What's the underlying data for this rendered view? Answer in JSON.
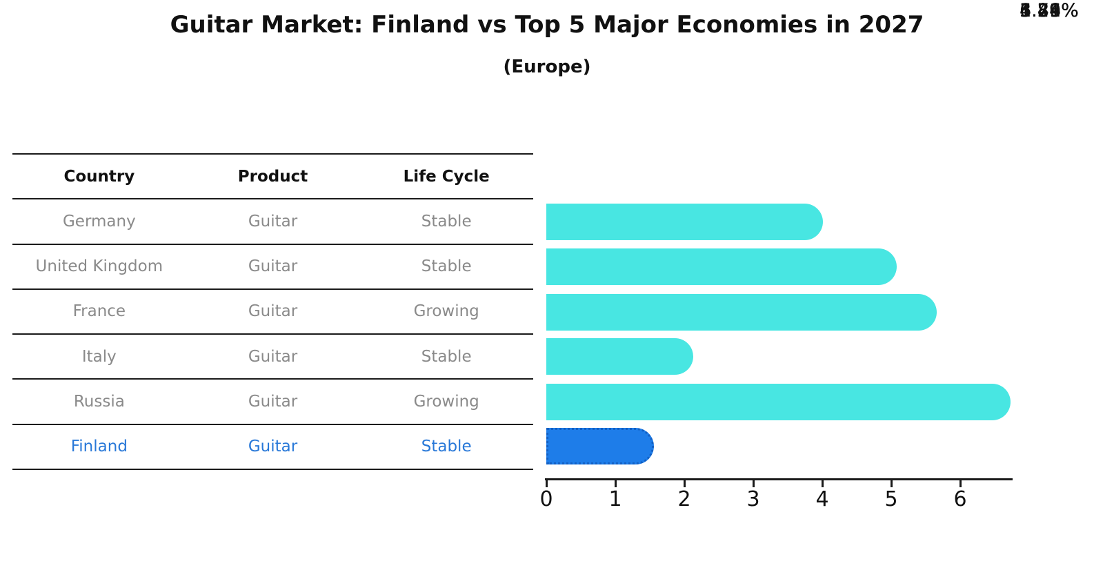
{
  "title": "Guitar Market: Finland vs Top 5 Major Economies in 2027",
  "subtitle": "(Europe)",
  "table": {
    "headers": [
      "Country",
      "Product",
      "Life Cycle"
    ],
    "rows": [
      {
        "country": "Germany",
        "product": "Guitar",
        "life_cycle": "Stable"
      },
      {
        "country": "United Kingdom",
        "product": "Guitar",
        "life_cycle": "Stable"
      },
      {
        "country": "France",
        "product": "Guitar",
        "life_cycle": "Growing"
      },
      {
        "country": "Italy",
        "product": "Guitar",
        "life_cycle": "Stable"
      },
      {
        "country": "Russia",
        "product": "Guitar",
        "life_cycle": "Growing"
      },
      {
        "country": "Finland",
        "product": "Guitar",
        "life_cycle": "Stable"
      }
    ]
  },
  "chart_data": {
    "type": "bar",
    "orientation": "horizontal",
    "title": "Guitar Market: Finland vs Top 5 Major Economies in 2027 (Europe)",
    "categories": [
      "Germany",
      "United Kingdom",
      "France",
      "Italy",
      "Russia",
      "Finland"
    ],
    "values": [
      3.74,
      4.81,
      5.39,
      1.86,
      6.46,
      1.29
    ],
    "labels": [
      "3.74%",
      "4.81%",
      "5.39%",
      "1.86%",
      "6.46%",
      "1.29%"
    ],
    "xlabel": "",
    "ylabel": "",
    "xlim": [
      0,
      6.78
    ],
    "xticks": [
      "0",
      "1",
      "2",
      "3",
      "4",
      "5",
      "6"
    ],
    "grid": false,
    "legend": false,
    "bar_color": "#48e6e2",
    "highlight_index": 5,
    "highlight_color": "#1e7de9",
    "highlight_edge_color": "#1260c4",
    "highlight_text_color": "#2878d8"
  }
}
